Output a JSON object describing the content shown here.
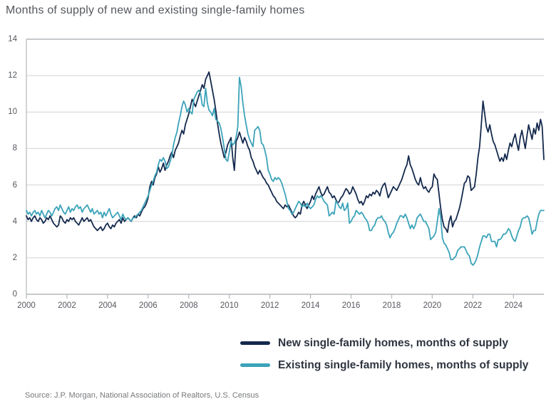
{
  "title": "Months of supply of new and existing single-family homes",
  "source": "Source: J.P. Morgan, National Association of Realtors, U.S. Census",
  "colors": {
    "title_text": "#54575d",
    "axis_text": "#55585e",
    "grid": "#d2d3d5",
    "border": "#b4b7ba",
    "legend_text": "#2e3540",
    "source_text": "#77797c",
    "navy": "#14294d",
    "teal": "#3ba3b9"
  },
  "chart_data": {
    "type": "line",
    "title": "Months of supply of new and existing single-family homes",
    "x_start_year": 2000,
    "points_per_year": 12,
    "ylim": [
      0,
      14
    ],
    "y_ticks": [
      0,
      2,
      4,
      6,
      8,
      10,
      12,
      14
    ],
    "x_ticks": [
      2000,
      2002,
      2004,
      2006,
      2008,
      2010,
      2012,
      2014,
      2016,
      2018,
      2020,
      2022,
      2024
    ],
    "grid": "horizontal",
    "legend_position": "bottom-right",
    "series": [
      {
        "name": "New single-family homes, months of supply",
        "color": "#14294d",
        "values": [
          4.3,
          4.1,
          4.2,
          4.0,
          4.2,
          4.3,
          4.1,
          4.0,
          4.2,
          4.1,
          3.9,
          4.0,
          4.2,
          4.1,
          4.3,
          4.1,
          3.9,
          3.8,
          3.7,
          3.8,
          4.3,
          4.2,
          4.0,
          3.9,
          4.1,
          4.0,
          4.2,
          4.1,
          4.2,
          4.0,
          3.9,
          3.8,
          4.0,
          4.2,
          4.0,
          4.1,
          4.2,
          4.0,
          4.1,
          3.9,
          3.7,
          3.6,
          3.5,
          3.6,
          3.7,
          3.5,
          3.6,
          3.8,
          3.9,
          3.7,
          3.6,
          3.8,
          3.7,
          3.9,
          4.0,
          4.1,
          3.9,
          4.2,
          4.0,
          4.1,
          4.2,
          4.1,
          4.0,
          4.2,
          4.3,
          4.2,
          4.4,
          4.3,
          4.5,
          4.7,
          4.8,
          5.0,
          5.3,
          5.9,
          6.2,
          6.0,
          6.4,
          6.6,
          7.0,
          6.7,
          6.9,
          7.2,
          6.8,
          7.1,
          7.3,
          7.6,
          7.8,
          7.5,
          7.9,
          8.1,
          8.3,
          8.7,
          9.0,
          8.8,
          9.3,
          9.6,
          9.9,
          10.3,
          10.7,
          10.5,
          10.3,
          10.6,
          10.9,
          11.2,
          11.5,
          11.3,
          11.8,
          12.0,
          12.2,
          11.7,
          11.2,
          10.7,
          10.1,
          9.4,
          8.8,
          8.3,
          7.9,
          7.5,
          7.8,
          8.2,
          8.4,
          8.6,
          7.5,
          6.8,
          8.4,
          8.6,
          8.9,
          8.6,
          8.3,
          8.6,
          8.4,
          8.1,
          7.9,
          7.5,
          7.3,
          7.0,
          6.8,
          6.6,
          6.8,
          6.6,
          6.4,
          6.3,
          6.1,
          6.0,
          5.8,
          5.6,
          5.4,
          5.3,
          5.1,
          5.0,
          4.9,
          4.8,
          4.7,
          4.9,
          4.8,
          4.9,
          4.7,
          4.5,
          4.3,
          4.2,
          4.3,
          4.5,
          4.4,
          4.9,
          5.1,
          4.9,
          4.7,
          4.9,
          5.1,
          5.4,
          5.2,
          5.5,
          5.7,
          5.9,
          5.6,
          5.4,
          5.5,
          5.7,
          5.9,
          5.6,
          5.5,
          5.3,
          5.4,
          5.2,
          5.0,
          5.1,
          5.3,
          5.4,
          5.6,
          5.8,
          5.7,
          5.5,
          5.6,
          5.9,
          5.7,
          5.5,
          5.2,
          5.0,
          5.1,
          4.9,
          5.1,
          5.4,
          5.3,
          5.5,
          5.4,
          5.6,
          5.5,
          5.7,
          5.6,
          5.4,
          5.8,
          6.0,
          6.1,
          5.7,
          5.3,
          5.5,
          5.7,
          5.9,
          5.8,
          5.7,
          5.9,
          6.1,
          6.3,
          6.6,
          6.9,
          7.1,
          7.6,
          7.1,
          6.9,
          6.6,
          6.3,
          6.1,
          6.0,
          6.4,
          6.0,
          5.8,
          5.9,
          5.7,
          5.6,
          5.8,
          5.9,
          6.6,
          6.4,
          6.3,
          5.5,
          4.7,
          4.1,
          3.7,
          3.6,
          3.4,
          4.0,
          4.3,
          3.7,
          4.0,
          4.1,
          4.4,
          4.7,
          5.1,
          5.6,
          6.1,
          6.2,
          6.5,
          6.4,
          5.7,
          5.8,
          5.9,
          6.6,
          7.5,
          8.1,
          9.3,
          10.6,
          9.9,
          9.2,
          8.9,
          9.3,
          8.8,
          8.4,
          8.2,
          7.9,
          7.6,
          7.3,
          7.5,
          7.3,
          7.7,
          7.4,
          7.9,
          8.3,
          8.1,
          8.5,
          8.8,
          8.3,
          7.9,
          8.6,
          9.0,
          8.5,
          8.0,
          8.7,
          9.3,
          8.9,
          8.5,
          9.1,
          8.8,
          9.4,
          9.0,
          9.6,
          9.2,
          7.4
        ]
      },
      {
        "name": "Existing single-family homes, months of supply",
        "color": "#3ba3b9",
        "values": [
          4.6,
          4.4,
          4.5,
          4.3,
          4.5,
          4.6,
          4.4,
          4.5,
          4.3,
          4.6,
          4.4,
          4.2,
          4.4,
          4.6,
          4.5,
          4.3,
          4.5,
          4.7,
          4.8,
          4.6,
          4.9,
          4.7,
          4.5,
          4.4,
          4.6,
          4.8,
          4.5,
          4.7,
          4.6,
          4.8,
          4.9,
          4.7,
          4.8,
          4.5,
          4.7,
          4.8,
          4.9,
          4.7,
          4.5,
          4.7,
          4.4,
          4.5,
          4.6,
          4.4,
          4.5,
          4.2,
          4.5,
          4.3,
          4.5,
          4.7,
          4.4,
          4.2,
          4.3,
          4.4,
          4.5,
          4.3,
          4.1,
          4.4,
          4.2,
          4.1,
          4.2,
          4.1,
          4.0,
          4.2,
          4.2,
          4.3,
          4.4,
          4.5,
          4.6,
          4.8,
          5.0,
          5.2,
          5.4,
          5.7,
          6.0,
          6.2,
          6.5,
          6.7,
          7.1,
          7.4,
          7.3,
          7.5,
          7.3,
          6.9,
          7.0,
          7.3,
          7.6,
          8.2,
          8.6,
          8.9,
          9.4,
          9.8,
          10.3,
          10.6,
          10.4,
          10.0,
          10.2,
          10.0,
          9.9,
          10.7,
          10.9,
          11.1,
          11.2,
          11.0,
          10.4,
          10.3,
          11.3,
          10.5,
          10.1,
          10.0,
          9.8,
          10.2,
          9.6,
          9.5,
          9.4,
          9.1,
          8.6,
          8.0,
          7.4,
          7.3,
          7.8,
          8.4,
          8.2,
          8.3,
          8.6,
          9.2,
          11.9,
          11.4,
          10.5,
          9.8,
          9.3,
          8.8,
          8.5,
          8.3,
          8.1,
          9.0,
          9.1,
          9.2,
          9.0,
          8.3,
          8.2,
          7.9,
          7.5,
          6.8,
          6.6,
          6.3,
          6.2,
          6.4,
          6.3,
          6.4,
          6.3,
          6.1,
          5.8,
          5.5,
          5.1,
          4.7,
          4.6,
          4.4,
          4.5,
          4.7,
          4.9,
          5.1,
          5.0,
          4.8,
          4.9,
          4.8,
          5.0,
          4.8,
          4.7,
          4.8,
          4.9,
          5.2,
          5.4,
          5.3,
          5.4,
          5.3,
          5.1,
          5.0,
          4.9,
          4.3,
          4.4,
          4.5,
          4.4,
          5.1,
          5.0,
          4.8,
          4.7,
          5.0,
          4.6,
          4.7,
          5.0,
          3.9,
          4.0,
          4.2,
          4.3,
          4.6,
          4.5,
          4.4,
          4.5,
          4.4,
          4.2,
          4.1,
          3.9,
          3.5,
          3.5,
          3.7,
          3.8,
          4.1,
          4.2,
          4.2,
          4.3,
          4.1,
          4.0,
          3.8,
          3.4,
          3.1,
          3.3,
          3.4,
          3.6,
          3.9,
          4.1,
          4.3,
          4.3,
          4.2,
          4.4,
          4.2,
          3.9,
          3.6,
          3.8,
          3.6,
          3.8,
          4.2,
          4.3,
          4.4,
          4.2,
          4.0,
          4.0,
          3.8,
          3.6,
          3.0,
          3.1,
          3.2,
          3.4,
          4.0,
          4.7,
          4.2,
          3.1,
          2.8,
          2.7,
          2.5,
          2.3,
          1.9,
          1.9,
          2.0,
          2.1,
          2.4,
          2.5,
          2.6,
          2.6,
          2.6,
          2.4,
          2.2,
          2.1,
          1.7,
          1.6,
          1.7,
          1.9,
          2.2,
          2.6,
          2.9,
          3.2,
          3.2,
          3.1,
          3.3,
          3.3,
          2.9,
          2.9,
          2.9,
          2.6,
          3.0,
          3.0,
          3.1,
          3.3,
          3.3,
          3.4,
          3.6,
          3.5,
          3.2,
          3.0,
          2.9,
          3.2,
          3.5,
          3.7,
          4.1,
          4.2,
          4.2,
          4.3,
          4.2,
          3.8,
          3.3,
          3.5,
          3.5,
          4.0,
          4.4,
          4.6,
          4.6,
          4.6
        ]
      }
    ]
  }
}
